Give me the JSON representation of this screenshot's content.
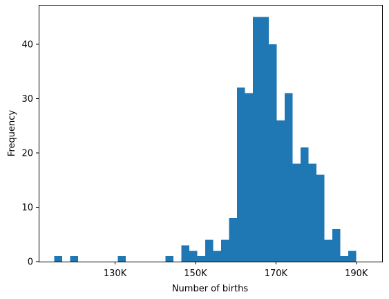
{
  "chart_data": {
    "type": "bar",
    "title": "",
    "xlabel": "Number of births",
    "ylabel": "Frequency",
    "xlim": [
      111000,
      196400
    ],
    "ylim": [
      0,
      47.25
    ],
    "x_ticks": [
      130000,
      150000,
      170000,
      190000
    ],
    "x_tick_labels": [
      "130K",
      "150K",
      "170K",
      "190K"
    ],
    "y_ticks": [
      0,
      10,
      20,
      30,
      40
    ],
    "y_tick_labels": [
      "0",
      "10",
      "20",
      "30",
      "40"
    ],
    "bar_color": "#1f77b4",
    "grid": false,
    "bin_start": 114880,
    "bin_width": 1976,
    "bins": [
      {
        "x_start": 114880,
        "x_end": 116856,
        "count": 1
      },
      {
        "x_start": 116856,
        "x_end": 118832,
        "count": 0
      },
      {
        "x_start": 118832,
        "x_end": 120808,
        "count": 1
      },
      {
        "x_start": 120808,
        "x_end": 122784,
        "count": 0
      },
      {
        "x_start": 122784,
        "x_end": 124760,
        "count": 0
      },
      {
        "x_start": 124760,
        "x_end": 126736,
        "count": 0
      },
      {
        "x_start": 126736,
        "x_end": 128712,
        "count": 0
      },
      {
        "x_start": 128712,
        "x_end": 130688,
        "count": 0
      },
      {
        "x_start": 130688,
        "x_end": 132664,
        "count": 1
      },
      {
        "x_start": 132664,
        "x_end": 134640,
        "count": 0
      },
      {
        "x_start": 134640,
        "x_end": 136616,
        "count": 0
      },
      {
        "x_start": 136616,
        "x_end": 138592,
        "count": 0
      },
      {
        "x_start": 138592,
        "x_end": 140568,
        "count": 0
      },
      {
        "x_start": 140568,
        "x_end": 142544,
        "count": 0
      },
      {
        "x_start": 142544,
        "x_end": 144520,
        "count": 1
      },
      {
        "x_start": 144520,
        "x_end": 146496,
        "count": 0
      },
      {
        "x_start": 146496,
        "x_end": 148472,
        "count": 3
      },
      {
        "x_start": 148472,
        "x_end": 150448,
        "count": 2
      },
      {
        "x_start": 150448,
        "x_end": 152424,
        "count": 1
      },
      {
        "x_start": 152424,
        "x_end": 154400,
        "count": 4
      },
      {
        "x_start": 154400,
        "x_end": 156376,
        "count": 2
      },
      {
        "x_start": 156376,
        "x_end": 158352,
        "count": 4
      },
      {
        "x_start": 158352,
        "x_end": 160328,
        "count": 8
      },
      {
        "x_start": 160328,
        "x_end": 162304,
        "count": 32
      },
      {
        "x_start": 162304,
        "x_end": 164280,
        "count": 31
      },
      {
        "x_start": 164280,
        "x_end": 166256,
        "count": 45
      },
      {
        "x_start": 166256,
        "x_end": 168232,
        "count": 45
      },
      {
        "x_start": 168232,
        "x_end": 170208,
        "count": 40
      },
      {
        "x_start": 170208,
        "x_end": 172184,
        "count": 26
      },
      {
        "x_start": 172184,
        "x_end": 174160,
        "count": 31
      },
      {
        "x_start": 174160,
        "x_end": 176136,
        "count": 18
      },
      {
        "x_start": 176136,
        "x_end": 178112,
        "count": 21
      },
      {
        "x_start": 178112,
        "x_end": 180088,
        "count": 18
      },
      {
        "x_start": 180088,
        "x_end": 182064,
        "count": 16
      },
      {
        "x_start": 182064,
        "x_end": 184040,
        "count": 4
      },
      {
        "x_start": 184040,
        "x_end": 186016,
        "count": 6
      },
      {
        "x_start": 186016,
        "x_end": 187992,
        "count": 1
      },
      {
        "x_start": 187992,
        "x_end": 189968,
        "count": 2
      }
    ]
  }
}
